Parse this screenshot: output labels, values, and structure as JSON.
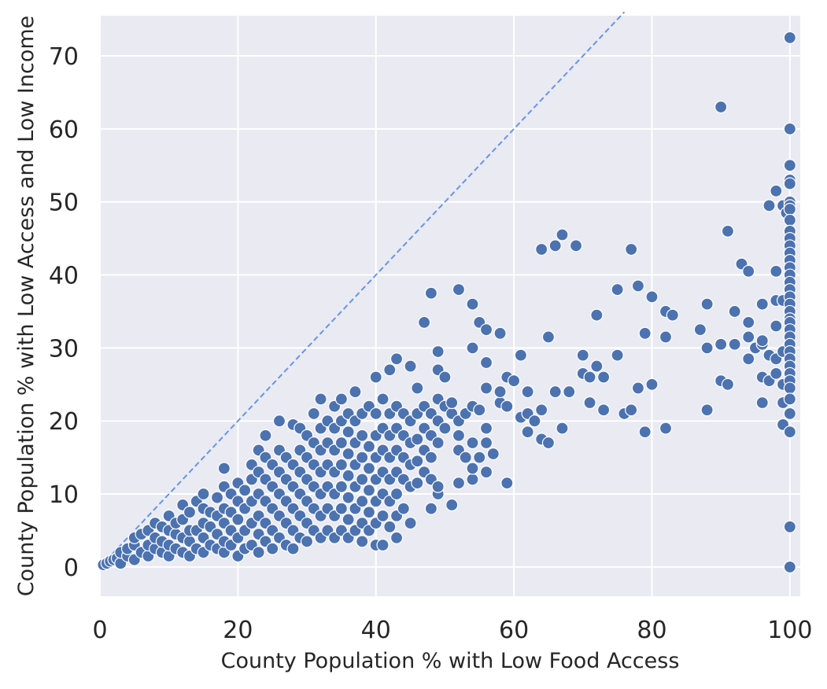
{
  "chart_data": {
    "type": "scatter",
    "title": "",
    "xlabel": "County Population % with Low Food Access",
    "ylabel": "County Population % with Low Access and Low Income",
    "xlim": [
      0,
      101.5
    ],
    "ylim": [
      -4,
      75.5
    ],
    "xticks": [
      0,
      20,
      40,
      60,
      80,
      100
    ],
    "yticks": [
      0,
      10,
      20,
      30,
      40,
      50,
      60,
      70
    ],
    "grid": true,
    "legend": "none",
    "colors": {
      "points": "#4c72b0",
      "point_edge": "#ffffff",
      "reference_line": "#6495ed",
      "plot_background": "#eaeaf2",
      "grid": "#ffffff"
    },
    "reference_line": {
      "style": "dashed",
      "points": [
        [
          0,
          0
        ],
        [
          76,
          76
        ]
      ]
    },
    "points": [
      [
        0.5,
        0.3
      ],
      [
        1,
        0.5
      ],
      [
        1.5,
        0.8
      ],
      [
        2,
        1
      ],
      [
        2.5,
        1.2
      ],
      [
        3,
        0.5
      ],
      [
        3,
        2
      ],
      [
        4,
        1.5
      ],
      [
        4,
        2.5
      ],
      [
        5,
        1
      ],
      [
        5,
        3
      ],
      [
        5,
        4
      ],
      [
        6,
        2
      ],
      [
        6,
        4.5
      ],
      [
        7,
        1.5
      ],
      [
        7,
        3
      ],
      [
        7,
        5
      ],
      [
        8,
        2.5
      ],
      [
        8,
        4
      ],
      [
        8,
        6
      ],
      [
        9,
        2
      ],
      [
        9,
        3.5
      ],
      [
        9,
        5.5
      ],
      [
        10,
        1.5
      ],
      [
        10,
        3
      ],
      [
        10,
        5
      ],
      [
        10,
        7
      ],
      [
        11,
        2.5
      ],
      [
        11,
        4.5
      ],
      [
        11,
        6
      ],
      [
        12,
        2
      ],
      [
        12,
        4
      ],
      [
        12,
        6.5
      ],
      [
        12,
        8.5
      ],
      [
        13,
        1.5
      ],
      [
        13,
        3.5
      ],
      [
        13,
        5
      ],
      [
        13,
        7.5
      ],
      [
        14,
        2.5
      ],
      [
        14,
        5
      ],
      [
        14,
        9
      ],
      [
        15,
        2
      ],
      [
        15,
        4
      ],
      [
        15,
        6
      ],
      [
        15,
        8
      ],
      [
        15,
        10
      ],
      [
        16,
        3
      ],
      [
        16,
        5.5
      ],
      [
        16,
        7.5
      ],
      [
        17,
        2.5
      ],
      [
        17,
        4.5
      ],
      [
        17,
        7
      ],
      [
        17,
        9.5
      ],
      [
        18,
        2
      ],
      [
        18,
        3.5
      ],
      [
        18,
        6
      ],
      [
        18,
        8
      ],
      [
        18,
        11
      ],
      [
        18,
        13.5
      ],
      [
        19,
        3
      ],
      [
        19,
        5
      ],
      [
        19,
        7.5
      ],
      [
        19,
        10
      ],
      [
        20,
        1.5
      ],
      [
        20,
        4
      ],
      [
        20,
        6.5
      ],
      [
        20,
        9
      ],
      [
        20,
        11.5
      ],
      [
        21,
        2.5
      ],
      [
        21,
        5
      ],
      [
        21,
        8
      ],
      [
        21,
        10.5
      ],
      [
        22,
        3
      ],
      [
        22,
        6
      ],
      [
        22,
        9
      ],
      [
        22,
        12
      ],
      [
        22,
        14
      ],
      [
        23,
        2
      ],
      [
        23,
        4.5
      ],
      [
        23,
        7
      ],
      [
        23,
        10
      ],
      [
        23,
        13
      ],
      [
        23,
        16
      ],
      [
        24,
        3.5
      ],
      [
        24,
        6
      ],
      [
        24,
        9
      ],
      [
        24,
        12
      ],
      [
        24,
        15
      ],
      [
        24,
        18
      ],
      [
        25,
        2.5
      ],
      [
        25,
        5
      ],
      [
        25,
        8
      ],
      [
        25,
        11
      ],
      [
        25,
        14
      ],
      [
        26,
        4
      ],
      [
        26,
        7
      ],
      [
        26,
        10
      ],
      [
        26,
        13
      ],
      [
        26,
        16
      ],
      [
        26,
        20
      ],
      [
        27,
        3
      ],
      [
        27,
        6
      ],
      [
        27,
        9
      ],
      [
        27,
        12
      ],
      [
        27,
        15
      ],
      [
        28,
        2.5
      ],
      [
        28,
        5
      ],
      [
        28,
        8
      ],
      [
        28,
        11
      ],
      [
        28,
        14
      ],
      [
        28,
        19.5
      ],
      [
        29,
        4
      ],
      [
        29,
        7
      ],
      [
        29,
        10
      ],
      [
        29,
        13
      ],
      [
        29,
        16
      ],
      [
        29,
        19
      ],
      [
        30,
        3.5
      ],
      [
        30,
        6
      ],
      [
        30,
        9
      ],
      [
        30,
        12
      ],
      [
        30,
        15
      ],
      [
        30,
        18
      ],
      [
        31,
        5
      ],
      [
        31,
        8
      ],
      [
        31,
        11
      ],
      [
        31,
        14
      ],
      [
        31,
        17
      ],
      [
        31,
        21
      ],
      [
        32,
        4
      ],
      [
        32,
        7
      ],
      [
        32,
        10
      ],
      [
        32,
        13
      ],
      [
        32,
        16
      ],
      [
        32,
        19
      ],
      [
        32,
        23
      ],
      [
        33,
        5
      ],
      [
        33,
        8
      ],
      [
        33,
        11
      ],
      [
        33,
        14
      ],
      [
        33,
        17
      ],
      [
        33,
        20
      ],
      [
        34,
        4
      ],
      [
        34,
        7
      ],
      [
        34,
        10
      ],
      [
        34,
        13
      ],
      [
        34,
        16
      ],
      [
        34,
        19
      ],
      [
        34,
        22
      ],
      [
        35,
        5
      ],
      [
        35,
        8
      ],
      [
        35,
        11
      ],
      [
        35,
        14
      ],
      [
        35,
        17
      ],
      [
        35,
        20
      ],
      [
        35,
        23
      ],
      [
        36,
        4
      ],
      [
        36,
        6.5
      ],
      [
        36,
        9.5
      ],
      [
        36,
        12.5
      ],
      [
        36,
        15.5
      ],
      [
        36,
        18.5
      ],
      [
        36,
        21
      ],
      [
        37,
        5
      ],
      [
        37,
        8
      ],
      [
        37,
        11
      ],
      [
        37,
        14
      ],
      [
        37,
        17
      ],
      [
        37,
        20
      ],
      [
        37,
        24
      ],
      [
        38,
        3.5
      ],
      [
        38,
        6
      ],
      [
        38,
        9
      ],
      [
        38,
        12
      ],
      [
        38,
        15
      ],
      [
        38,
        18
      ],
      [
        38,
        21
      ],
      [
        39,
        5
      ],
      [
        39,
        7.5
      ],
      [
        39,
        10.5
      ],
      [
        39,
        13.5
      ],
      [
        39,
        16.5
      ],
      [
        39,
        22
      ],
      [
        40,
        3
      ],
      [
        40,
        6
      ],
      [
        40,
        9
      ],
      [
        40,
        12
      ],
      [
        40,
        15
      ],
      [
        40,
        18
      ],
      [
        40,
        21
      ],
      [
        40,
        26
      ],
      [
        41,
        3
      ],
      [
        41,
        7
      ],
      [
        41,
        10
      ],
      [
        41,
        13
      ],
      [
        41,
        16
      ],
      [
        41,
        19
      ],
      [
        41,
        23
      ],
      [
        42,
        5.5
      ],
      [
        42,
        9
      ],
      [
        42,
        12
      ],
      [
        42,
        15
      ],
      [
        42,
        18
      ],
      [
        42,
        21
      ],
      [
        42,
        27
      ],
      [
        43,
        4
      ],
      [
        43,
        7
      ],
      [
        43,
        10
      ],
      [
        43,
        13
      ],
      [
        43,
        16
      ],
      [
        43,
        19
      ],
      [
        43,
        22
      ],
      [
        43,
        28.5
      ],
      [
        44,
        8
      ],
      [
        44,
        12
      ],
      [
        44,
        15
      ],
      [
        44,
        18
      ],
      [
        44,
        21
      ],
      [
        45,
        6
      ],
      [
        45,
        11
      ],
      [
        45,
        14
      ],
      [
        45,
        17
      ],
      [
        45,
        20
      ],
      [
        45,
        27.5
      ],
      [
        46,
        11.5
      ],
      [
        46,
        14.5
      ],
      [
        46,
        17.5
      ],
      [
        46,
        21
      ],
      [
        46,
        24.5
      ],
      [
        47,
        13
      ],
      [
        47,
        16
      ],
      [
        47,
        19
      ],
      [
        47,
        22
      ],
      [
        47,
        33.5
      ],
      [
        48,
        8
      ],
      [
        48,
        12
      ],
      [
        48,
        15
      ],
      [
        48,
        18
      ],
      [
        48,
        21
      ],
      [
        48,
        37.5
      ],
      [
        49,
        10
      ],
      [
        49,
        11
      ],
      [
        49,
        17
      ],
      [
        49,
        20
      ],
      [
        49,
        23
      ],
      [
        49,
        27
      ],
      [
        49,
        29.5
      ],
      [
        50,
        19
      ],
      [
        50,
        22
      ],
      [
        50,
        26
      ],
      [
        51,
        8.5
      ],
      [
        51,
        21
      ],
      [
        51,
        22.5
      ],
      [
        52,
        11.5
      ],
      [
        52,
        16
      ],
      [
        52,
        18
      ],
      [
        52,
        20
      ],
      [
        52,
        38
      ],
      [
        53,
        15
      ],
      [
        53,
        21
      ],
      [
        54,
        12
      ],
      [
        54,
        13.5
      ],
      [
        54,
        17
      ],
      [
        54,
        22
      ],
      [
        54,
        30
      ],
      [
        54,
        36
      ],
      [
        55,
        15
      ],
      [
        55,
        21.5
      ],
      [
        55,
        33.5
      ],
      [
        56,
        13
      ],
      [
        56,
        17
      ],
      [
        56,
        19
      ],
      [
        56,
        24.5
      ],
      [
        56,
        28
      ],
      [
        56,
        32.5
      ],
      [
        57,
        15.5
      ],
      [
        58,
        22.5
      ],
      [
        58,
        24
      ],
      [
        58,
        32
      ],
      [
        59,
        11.5
      ],
      [
        59,
        22
      ],
      [
        59,
        26
      ],
      [
        60,
        25.5
      ],
      [
        61,
        20.5
      ],
      [
        61,
        29
      ],
      [
        62,
        18.5
      ],
      [
        62,
        21
      ],
      [
        62,
        24
      ],
      [
        63,
        20
      ],
      [
        64,
        17.5
      ],
      [
        64,
        21.5
      ],
      [
        64,
        43.5
      ],
      [
        65,
        17
      ],
      [
        65,
        31.5
      ],
      [
        66,
        24
      ],
      [
        66,
        44
      ],
      [
        67,
        19
      ],
      [
        67,
        45.5
      ],
      [
        68,
        24
      ],
      [
        69,
        44
      ],
      [
        70,
        26.5
      ],
      [
        70,
        29
      ],
      [
        71,
        22.5
      ],
      [
        71,
        26
      ],
      [
        72,
        34.5
      ],
      [
        72,
        27.5
      ],
      [
        73,
        21.5
      ],
      [
        73,
        26
      ],
      [
        75,
        38
      ],
      [
        75,
        29
      ],
      [
        76,
        21
      ],
      [
        77,
        21.5
      ],
      [
        77,
        43.5
      ],
      [
        78,
        24.5
      ],
      [
        78,
        38.5
      ],
      [
        79,
        18.5
      ],
      [
        79,
        32
      ],
      [
        80,
        37
      ],
      [
        80,
        25
      ],
      [
        82,
        19
      ],
      [
        82,
        31.5
      ],
      [
        82,
        35
      ],
      [
        83,
        34.5
      ],
      [
        87,
        32.5
      ],
      [
        88,
        36
      ],
      [
        88,
        30
      ],
      [
        88,
        21.5
      ],
      [
        90,
        63
      ],
      [
        90,
        30.5
      ],
      [
        90,
        25.5
      ],
      [
        91,
        46
      ],
      [
        91,
        25
      ],
      [
        92,
        35
      ],
      [
        92,
        30.5
      ],
      [
        93,
        41.5
      ],
      [
        94,
        40.5
      ],
      [
        94,
        33.5
      ],
      [
        94,
        31.5
      ],
      [
        94,
        28.5
      ],
      [
        95,
        30
      ],
      [
        96,
        36
      ],
      [
        96,
        26
      ],
      [
        96,
        22.5
      ],
      [
        96,
        30.5
      ],
      [
        96,
        31
      ],
      [
        97,
        49.5
      ],
      [
        97,
        25.5
      ],
      [
        97,
        29
      ],
      [
        98,
        51.5
      ],
      [
        98,
        40.5
      ],
      [
        98,
        33
      ],
      [
        98,
        28.5
      ],
      [
        98,
        26.5
      ],
      [
        98,
        36.5
      ],
      [
        99,
        36.5
      ],
      [
        99,
        29.5
      ],
      [
        99,
        25
      ],
      [
        99,
        22.5
      ],
      [
        99,
        19.5
      ],
      [
        99,
        49.5
      ],
      [
        99.5,
        48.5
      ],
      [
        100,
        72.5
      ],
      [
        100,
        60
      ],
      [
        100,
        55
      ],
      [
        100,
        53
      ],
      [
        100,
        52.5
      ],
      [
        100,
        50
      ],
      [
        100,
        49.5
      ],
      [
        100,
        49
      ],
      [
        100,
        47.5
      ],
      [
        100,
        46
      ],
      [
        100,
        45
      ],
      [
        100,
        44
      ],
      [
        100,
        43
      ],
      [
        100,
        42
      ],
      [
        100,
        41
      ],
      [
        100,
        40
      ],
      [
        100,
        39
      ],
      [
        100,
        38
      ],
      [
        100,
        37
      ],
      [
        100,
        36
      ],
      [
        100,
        35
      ],
      [
        100,
        34
      ],
      [
        100,
        33.5
      ],
      [
        100,
        32.5
      ],
      [
        100,
        31.5
      ],
      [
        100,
        30.5
      ],
      [
        100,
        29.5
      ],
      [
        100,
        28.5
      ],
      [
        100,
        27.5
      ],
      [
        100,
        26.5
      ],
      [
        100,
        25.5
      ],
      [
        100,
        24.5
      ],
      [
        100,
        23
      ],
      [
        100,
        21
      ],
      [
        100,
        18.5
      ],
      [
        100,
        5.5
      ],
      [
        100,
        0
      ]
    ]
  }
}
